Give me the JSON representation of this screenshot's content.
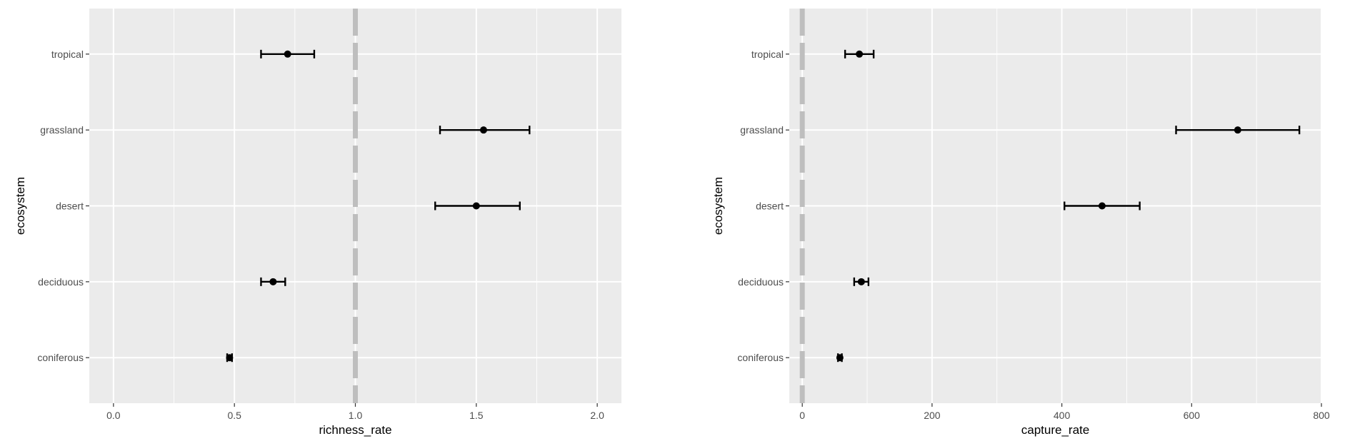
{
  "chart_data": [
    {
      "type": "errorbar",
      "xlabel": "richness_rate",
      "ylabel": "ecosystem",
      "xlim": [
        -0.1,
        2.1
      ],
      "x_ticks": [
        0.0,
        0.5,
        1.0,
        1.5,
        2.0
      ],
      "x_tick_labels": [
        "0.0",
        "0.5",
        "1.0",
        "1.5",
        "2.0"
      ],
      "categories": [
        "coniferous",
        "deciduous",
        "desert",
        "grassland",
        "tropical"
      ],
      "points": [
        {
          "category": "coniferous",
          "x": 0.48,
          "low": 0.47,
          "high": 0.49
        },
        {
          "category": "deciduous",
          "x": 0.66,
          "low": 0.61,
          "high": 0.71
        },
        {
          "category": "desert",
          "x": 1.5,
          "low": 1.33,
          "high": 1.68
        },
        {
          "category": "grassland",
          "x": 1.53,
          "low": 1.35,
          "high": 1.72
        },
        {
          "category": "tropical",
          "x": 0.72,
          "low": 0.61,
          "high": 0.83
        }
      ],
      "reference_line": {
        "x": 1.0,
        "style": "dashed",
        "color": "#bebebe"
      },
      "grid": true,
      "panel_background": "#ebebeb"
    },
    {
      "type": "errorbar",
      "xlabel": "capture_rate",
      "ylabel": "ecosystem",
      "xlim": [
        -20,
        800
      ],
      "x_ticks": [
        0,
        200,
        400,
        600,
        800
      ],
      "x_tick_labels": [
        "0",
        "200",
        "400",
        "600",
        "800"
      ],
      "categories": [
        "coniferous",
        "deciduous",
        "desert",
        "grassland",
        "tropical"
      ],
      "points": [
        {
          "category": "coniferous",
          "x": 58,
          "low": 55,
          "high": 61
        },
        {
          "category": "deciduous",
          "x": 91,
          "low": 80,
          "high": 102
        },
        {
          "category": "desert",
          "x": 462,
          "low": 404,
          "high": 520
        },
        {
          "category": "grassland",
          "x": 671,
          "low": 576,
          "high": 766
        },
        {
          "category": "tropical",
          "x": 88,
          "low": 66,
          "high": 110
        }
      ],
      "reference_line": {
        "x": 0,
        "style": "dashed",
        "color": "#bebebe"
      },
      "grid": true,
      "panel_background": "#ebebeb"
    }
  ]
}
